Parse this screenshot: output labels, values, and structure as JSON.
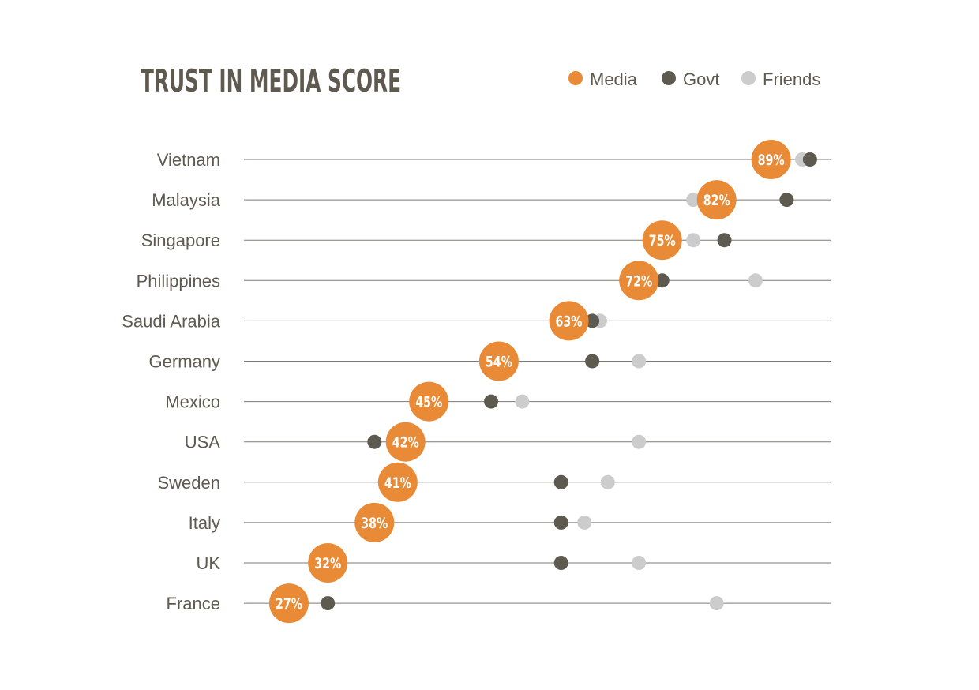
{
  "chart_data": {
    "type": "scatter",
    "title": "TRUST IN MEDIA SCORE",
    "xlabel": "",
    "ylabel": "",
    "xlim": [
      0,
      100
    ],
    "grid": false,
    "legend_position": "top-right",
    "categories": [
      "Vietnam",
      "Malaysia",
      "Singapore",
      "Philippines",
      "Saudi Arabia",
      "Germany",
      "Mexico",
      "USA",
      "Sweden",
      "Italy",
      "UK",
      "France"
    ],
    "series": [
      {
        "name": "Media",
        "color": "#e88a36",
        "values": [
          89,
          82,
          75,
          72,
          63,
          54,
          45,
          42,
          41,
          38,
          32,
          27
        ],
        "labels": [
          "89%",
          "82%",
          "75%",
          "72%",
          "63%",
          "54%",
          "45%",
          "42%",
          "41%",
          "38%",
          "32%",
          "27%"
        ]
      },
      {
        "name": "Govt",
        "color": "#5f5a50",
        "values": [
          94,
          91,
          83,
          75,
          66,
          66,
          53,
          38,
          62,
          62,
          62,
          32
        ]
      },
      {
        "name": "Friends",
        "color": "#cccccc",
        "values": [
          93,
          79,
          79,
          87,
          67,
          72,
          57,
          72,
          68,
          65,
          72,
          82
        ]
      }
    ]
  }
}
